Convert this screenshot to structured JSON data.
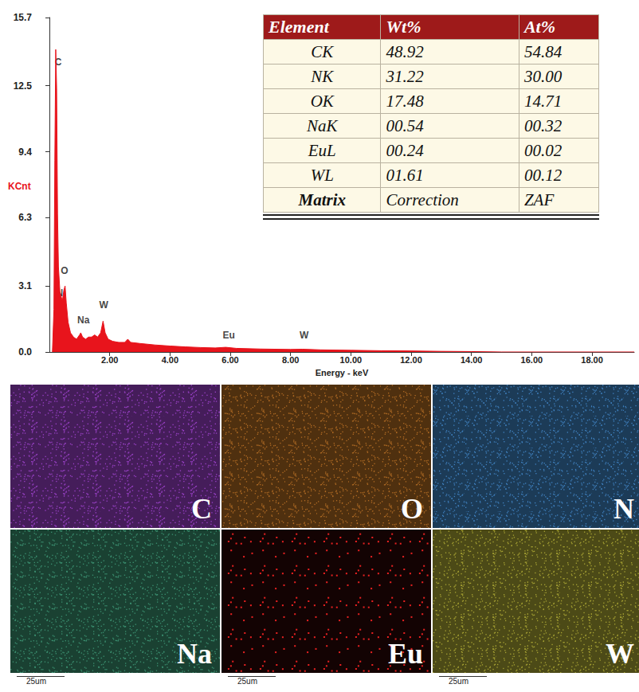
{
  "chart_data": {
    "type": "area",
    "x_label": "Energy - keV",
    "y_label": "KCnt",
    "color": "#e8141c",
    "grid": false,
    "x": [
      0.1,
      0.15,
      0.18,
      0.21,
      0.24,
      0.27,
      0.3,
      0.35,
      0.39,
      0.43,
      0.48,
      0.52,
      0.56,
      0.62,
      0.7,
      0.8,
      0.9,
      1.0,
      1.04,
      1.1,
      1.2,
      1.3,
      1.4,
      1.5,
      1.6,
      1.7,
      1.78,
      1.85,
      1.95,
      2.1,
      2.3,
      2.5,
      2.6,
      2.7,
      3.0,
      3.5,
      4.0,
      4.5,
      5.0,
      5.5,
      5.85,
      6.2,
      7.0,
      8.0,
      8.4,
      9.0,
      10.0,
      11.0,
      12.0,
      13.0,
      14.0,
      15.0,
      19.4
    ],
    "values": [
      0.0,
      2.0,
      9.0,
      14.2,
      12.4,
      6.5,
      4.0,
      2.8,
      2.6,
      2.4,
      2.9,
      3.1,
      2.3,
      1.4,
      0.9,
      0.7,
      0.6,
      0.8,
      0.9,
      0.7,
      0.6,
      0.7,
      0.7,
      0.8,
      0.7,
      0.9,
      1.45,
      0.9,
      0.6,
      0.5,
      0.45,
      0.45,
      0.6,
      0.45,
      0.4,
      0.33,
      0.28,
      0.24,
      0.21,
      0.19,
      0.22,
      0.17,
      0.14,
      0.12,
      0.13,
      0.1,
      0.08,
      0.06,
      0.05,
      0.03,
      0.02,
      0.0,
      0.0
    ],
    "xlim": [
      0,
      19.4
    ],
    "xticks": [
      {
        "value": 2,
        "label": "2.00"
      },
      {
        "value": 4,
        "label": "4.00"
      },
      {
        "value": 6,
        "label": "6.00"
      },
      {
        "value": 8,
        "label": "8.00"
      },
      {
        "value": 10,
        "label": "10.00"
      },
      {
        "value": 12,
        "label": "12.00"
      },
      {
        "value": 14,
        "label": "14.00"
      },
      {
        "value": 16,
        "label": "16.00"
      },
      {
        "value": 18,
        "label": "18.00"
      }
    ],
    "ylim": [
      0,
      15.7
    ],
    "yticks": [
      {
        "value": 0,
        "label": "0.0"
      },
      3.1,
      6.3,
      9.4,
      12.5,
      15.7
    ],
    "annotations": [
      {
        "text": "C",
        "x": 0.29,
        "y": 13.6
      },
      {
        "text": "N",
        "x": 0.34,
        "y": 2.75
      },
      {
        "text": "O",
        "x": 0.5,
        "y": 3.8
      },
      {
        "text": "Na",
        "x": 1.13,
        "y": 1.5
      },
      {
        "text": "W",
        "x": 1.8,
        "y": 2.2
      },
      {
        "text": "Eu",
        "x": 5.95,
        "y": 0.8
      },
      {
        "text": "W",
        "x": 8.45,
        "y": 0.8
      }
    ]
  },
  "table": {
    "header": [
      "Element",
      "Wt%",
      "At%"
    ],
    "rows": [
      [
        "CK",
        "48.92",
        "54.84"
      ],
      [
        "NK",
        "31.22",
        "30.00"
      ],
      [
        "OK",
        "17.48",
        "14.71"
      ],
      [
        "NaK",
        "00.54",
        "00.32"
      ],
      [
        "EuL",
        "00.24",
        "00.02"
      ],
      [
        "WL",
        "01.61",
        "00.12"
      ],
      [
        "Matrix",
        "Correction",
        "ZAF"
      ]
    ]
  },
  "maps": [
    {
      "label": "C",
      "color": "#9a40c8"
    },
    {
      "label": "O",
      "color": "#b06a22"
    },
    {
      "label": "N",
      "color": "#3f82c2"
    },
    {
      "label": "Na",
      "color": "#3a9070"
    },
    {
      "label": "Eu",
      "color": "#e82020"
    },
    {
      "label": "W",
      "color": "#a8a432"
    }
  ],
  "scale_bars": [
    "25um",
    "25um",
    "25um"
  ]
}
